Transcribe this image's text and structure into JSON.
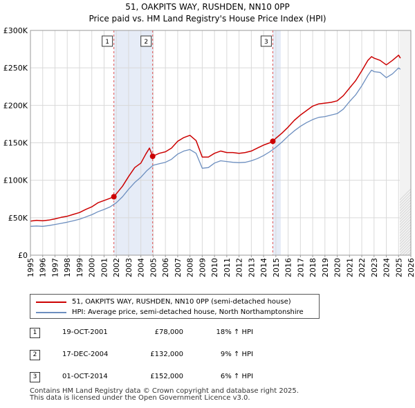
{
  "chart_data": {
    "type": "line",
    "title": "51, OAKPITS WAY, RUSHDEN, NN10 0PP",
    "subtitle": "Price paid vs. HM Land Registry's House Price Index (HPI)",
    "xlim": [
      1995,
      2026
    ],
    "ylim": [
      0,
      300000
    ],
    "y_ticks": [
      0,
      50000,
      100000,
      150000,
      200000,
      250000,
      300000
    ],
    "y_tick_labels": [
      "£0",
      "£50K",
      "£100K",
      "£150K",
      "£200K",
      "£250K",
      "£300K"
    ],
    "x_ticks": [
      1995,
      1996,
      1997,
      1998,
      1999,
      2000,
      2001,
      2002,
      2003,
      2004,
      2005,
      2006,
      2007,
      2008,
      2009,
      2010,
      2011,
      2012,
      2013,
      2014,
      2015,
      2016,
      2017,
      2018,
      2019,
      2020,
      2021,
      2022,
      2023,
      2024,
      2025,
      2026
    ],
    "x_tick_labels": [
      "1995",
      "1996",
      "1997",
      "1998",
      "1999",
      "2000",
      "2001",
      "2002",
      "2003",
      "2004",
      "2005",
      "2006",
      "2007",
      "2008",
      "2009",
      "2010",
      "2011",
      "2012",
      "2013",
      "2014",
      "2015",
      "2016",
      "2017",
      "2018",
      "2019",
      "2020",
      "2021",
      "2022",
      "2023",
      "2024",
      "2025",
      "2026"
    ],
    "forecast_start": 2025.1,
    "series": [
      {
        "name": "51, OAKPITS WAY, RUSHDEN, NN10 0PP (semi-detached house)",
        "color": "#cc0000",
        "points": [
          [
            1995.0,
            45500
          ],
          [
            1995.5,
            46500
          ],
          [
            1996.0,
            46000
          ],
          [
            1996.5,
            46800
          ],
          [
            1997.0,
            48500
          ],
          [
            1997.5,
            50500
          ],
          [
            1998.0,
            52000
          ],
          [
            1998.5,
            54500
          ],
          [
            1999.0,
            57000
          ],
          [
            1999.5,
            61000
          ],
          [
            2000.0,
            64500
          ],
          [
            2000.5,
            70000
          ],
          [
            2001.0,
            73000
          ],
          [
            2001.5,
            76000
          ],
          [
            2001.8,
            78000
          ],
          [
            2002.0,
            82000
          ],
          [
            2002.5,
            92000
          ],
          [
            2003.0,
            105000
          ],
          [
            2003.5,
            117000
          ],
          [
            2004.0,
            123000
          ],
          [
            2004.4,
            135000
          ],
          [
            2004.7,
            143000
          ],
          [
            2004.96,
            132000
          ],
          [
            2005.5,
            136000
          ],
          [
            2006.0,
            138000
          ],
          [
            2006.5,
            143000
          ],
          [
            2007.0,
            152000
          ],
          [
            2007.5,
            157000
          ],
          [
            2008.0,
            160000
          ],
          [
            2008.5,
            153000
          ],
          [
            2009.0,
            131000
          ],
          [
            2009.5,
            131000
          ],
          [
            2010.0,
            136000
          ],
          [
            2010.5,
            139000
          ],
          [
            2011.0,
            137000
          ],
          [
            2011.5,
            137000
          ],
          [
            2012.0,
            136000
          ],
          [
            2012.5,
            137000
          ],
          [
            2013.0,
            139000
          ],
          [
            2013.5,
            143000
          ],
          [
            2014.0,
            147000
          ],
          [
            2014.5,
            150000
          ],
          [
            2014.75,
            152000
          ],
          [
            2015.0,
            156000
          ],
          [
            2015.5,
            163000
          ],
          [
            2016.0,
            171000
          ],
          [
            2016.5,
            180000
          ],
          [
            2017.0,
            187000
          ],
          [
            2017.5,
            193000
          ],
          [
            2018.0,
            199000
          ],
          [
            2018.5,
            202000
          ],
          [
            2019.0,
            203000
          ],
          [
            2019.5,
            204000
          ],
          [
            2020.0,
            206000
          ],
          [
            2020.5,
            213000
          ],
          [
            2021.0,
            223000
          ],
          [
            2021.5,
            233000
          ],
          [
            2022.0,
            246000
          ],
          [
            2022.5,
            260000
          ],
          [
            2022.8,
            265000
          ],
          [
            2023.0,
            263000
          ],
          [
            2023.5,
            260000
          ],
          [
            2024.0,
            254000
          ],
          [
            2024.5,
            260000
          ],
          [
            2025.0,
            267000
          ],
          [
            2025.15,
            263000
          ]
        ]
      },
      {
        "name": "HPI: Average price, semi-detached house, North Northamptonshire",
        "color": "#6c8ebf",
        "points": [
          [
            1995.0,
            38500
          ],
          [
            1995.5,
            39000
          ],
          [
            1996.0,
            38500
          ],
          [
            1996.5,
            39500
          ],
          [
            1997.0,
            41000
          ],
          [
            1997.5,
            42500
          ],
          [
            1998.0,
            44000
          ],
          [
            1998.5,
            46000
          ],
          [
            1999.0,
            48000
          ],
          [
            1999.5,
            51000
          ],
          [
            2000.0,
            54000
          ],
          [
            2000.5,
            58000
          ],
          [
            2001.0,
            61000
          ],
          [
            2001.5,
            64500
          ],
          [
            2002.0,
            70000
          ],
          [
            2002.5,
            78000
          ],
          [
            2003.0,
            88000
          ],
          [
            2003.5,
            97000
          ],
          [
            2004.0,
            104000
          ],
          [
            2004.5,
            113000
          ],
          [
            2005.0,
            120000
          ],
          [
            2005.5,
            122000
          ],
          [
            2006.0,
            124000
          ],
          [
            2006.5,
            128000
          ],
          [
            2007.0,
            135000
          ],
          [
            2007.5,
            139000
          ],
          [
            2008.0,
            141000
          ],
          [
            2008.5,
            136000
          ],
          [
            2009.0,
            116000
          ],
          [
            2009.5,
            117000
          ],
          [
            2010.0,
            123000
          ],
          [
            2010.5,
            126000
          ],
          [
            2011.0,
            125000
          ],
          [
            2011.5,
            124000
          ],
          [
            2012.0,
            123500
          ],
          [
            2012.5,
            124000
          ],
          [
            2013.0,
            126000
          ],
          [
            2013.5,
            129000
          ],
          [
            2014.0,
            133000
          ],
          [
            2014.5,
            138000
          ],
          [
            2015.0,
            144000
          ],
          [
            2015.5,
            151000
          ],
          [
            2016.0,
            159000
          ],
          [
            2016.5,
            166000
          ],
          [
            2017.0,
            172000
          ],
          [
            2017.5,
            177000
          ],
          [
            2018.0,
            181000
          ],
          [
            2018.5,
            184000
          ],
          [
            2019.0,
            185000
          ],
          [
            2019.5,
            187000
          ],
          [
            2020.0,
            189000
          ],
          [
            2020.5,
            195000
          ],
          [
            2021.0,
            205000
          ],
          [
            2021.5,
            214000
          ],
          [
            2022.0,
            226000
          ],
          [
            2022.5,
            240000
          ],
          [
            2022.8,
            247000
          ],
          [
            2023.0,
            245000
          ],
          [
            2023.5,
            244000
          ],
          [
            2024.0,
            237000
          ],
          [
            2024.5,
            242000
          ],
          [
            2025.0,
            250000
          ],
          [
            2025.15,
            248000
          ]
        ]
      }
    ],
    "transactions": [
      {
        "num": "1",
        "x": 2001.8,
        "value": 78000,
        "date": "19-OCT-2001",
        "price": "£78,000",
        "hpi": "18% ↑ HPI"
      },
      {
        "num": "2",
        "x": 2004.96,
        "value": 132000,
        "date": "17-DEC-2004",
        "price": "£132,000",
        "hpi": "9% ↑ HPI"
      },
      {
        "num": "3",
        "x": 2014.75,
        "value": 152000,
        "date": "01-OCT-2014",
        "price": "£152,000",
        "hpi": "6% ↑ HPI"
      }
    ],
    "shaded_ranges": [
      [
        2001.8,
        2004.96
      ],
      [
        2014.75,
        2015.4
      ]
    ]
  },
  "legend": {
    "price_label": "51, OAKPITS WAY, RUSHDEN, NN10 0PP (semi-detached house)",
    "hpi_label": "HPI: Average price, semi-detached house, North Northamptonshire"
  },
  "table": [
    {
      "num": "1",
      "date": "19-OCT-2001",
      "price": "£78,000",
      "hpi": "18% ↑ HPI"
    },
    {
      "num": "2",
      "date": "17-DEC-2004",
      "price": "£132,000",
      "hpi": "9% ↑ HPI"
    },
    {
      "num": "3",
      "date": "01-OCT-2014",
      "price": "£152,000",
      "hpi": "6% ↑ HPI"
    }
  ],
  "footer": {
    "line1": "Contains HM Land Registry data © Crown copyright and database right 2025.",
    "line2": "This data is licensed under the Open Government Licence v3.0."
  },
  "colors": {
    "price_line": "#cc0000",
    "hpi_line": "#6c8ebf",
    "shade": "#e6ecf7",
    "grid": "#d9d9d9",
    "marker_line": "#e05050"
  }
}
